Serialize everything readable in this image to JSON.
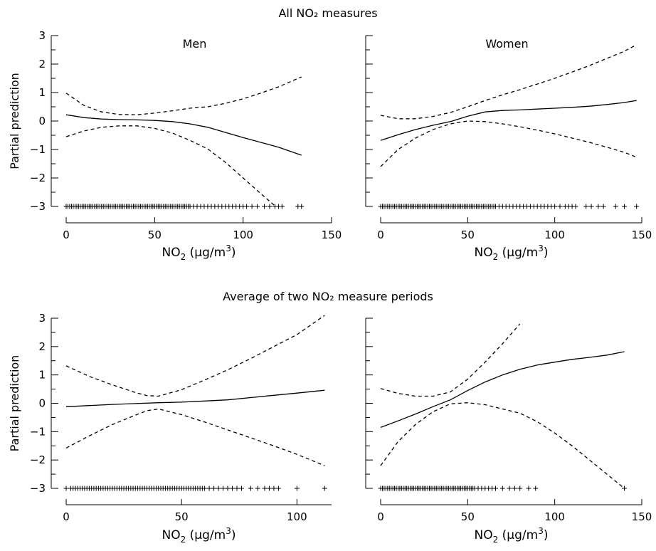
{
  "figure": {
    "title_top": "All NO₂ measures",
    "title_bottom": "Average of two NO₂ measure periods"
  },
  "labels": {
    "ylabel": "Partial prediction",
    "xlabel_main": "NO",
    "xlabel_sub": "2",
    "xlabel_units": " (µg/m",
    "xlabel_sup": "3",
    "xlabel_close": ")"
  },
  "colors": {
    "line": "#000000",
    "background": "#ffffff"
  },
  "chart_data": [
    {
      "type": "line",
      "panel": "All NO2 measures - Men",
      "title": "Men",
      "xlabel": "NO2 (µg/m3)",
      "ylabel": "Partial prediction",
      "xlim": [
        0,
        150
      ],
      "ylim": [
        -3,
        3
      ],
      "xticks": [
        0,
        50,
        100,
        150
      ],
      "yticks": [
        -3,
        -2,
        -1,
        0,
        1,
        2,
        3
      ],
      "show_ylabel": true,
      "series": [
        {
          "style": "solid",
          "x": [
            0,
            10,
            20,
            30,
            40,
            50,
            60,
            70,
            80,
            90,
            100,
            110,
            120,
            133
          ],
          "y": [
            0.22,
            0.12,
            0.07,
            0.05,
            0.04,
            0.02,
            -0.02,
            -0.1,
            -0.22,
            -0.4,
            -0.58,
            -0.75,
            -0.92,
            -1.2
          ]
        },
        {
          "style": "dashed",
          "x": [
            0,
            10,
            20,
            30,
            40,
            50,
            60,
            70,
            80,
            90,
            100,
            110,
            120,
            133
          ],
          "y": [
            0.98,
            0.55,
            0.32,
            0.23,
            0.22,
            0.28,
            0.36,
            0.45,
            0.5,
            0.62,
            0.78,
            0.98,
            1.2,
            1.55
          ]
        },
        {
          "style": "dashed",
          "x": [
            0,
            10,
            20,
            30,
            40,
            50,
            60,
            70,
            80,
            90,
            100,
            110,
            118
          ],
          "y": [
            -0.55,
            -0.35,
            -0.22,
            -0.17,
            -0.17,
            -0.26,
            -0.42,
            -0.68,
            -0.98,
            -1.45,
            -2.0,
            -2.55,
            -2.98
          ]
        }
      ],
      "rug": {
        "y": -3,
        "x": [
          0,
          1,
          2,
          3,
          4,
          5,
          6,
          7,
          8,
          9,
          10,
          11,
          12,
          13,
          14,
          15,
          16,
          17,
          18,
          19,
          20,
          21,
          22,
          23,
          24,
          25,
          26,
          27,
          28,
          29,
          30,
          31,
          32,
          33,
          34,
          35,
          36,
          37,
          38,
          39,
          40,
          41,
          42,
          43,
          44,
          45,
          46,
          47,
          48,
          49,
          50,
          51,
          52,
          53,
          54,
          55,
          56,
          57,
          58,
          59,
          60,
          61,
          62,
          63,
          64,
          65,
          66,
          67,
          68,
          69,
          70,
          72,
          74,
          76,
          78,
          80,
          82,
          84,
          86,
          88,
          90,
          92,
          94,
          96,
          98,
          100,
          102,
          105,
          108,
          112,
          115,
          118,
          120,
          122,
          131,
          133
        ]
      }
    },
    {
      "type": "line",
      "panel": "All NO2 measures - Women",
      "title": "Women",
      "xlabel": "NO2 (µg/m3)",
      "ylabel": "",
      "xlim": [
        0,
        150
      ],
      "ylim": [
        -3,
        3
      ],
      "xticks": [
        0,
        50,
        100,
        150
      ],
      "yticks": [
        -3,
        -2,
        -1,
        0,
        1,
        2,
        3
      ],
      "show_ylabel": false,
      "series": [
        {
          "style": "solid",
          "x": [
            0,
            10,
            20,
            30,
            40,
            50,
            60,
            70,
            80,
            90,
            100,
            110,
            120,
            130,
            140,
            147
          ],
          "y": [
            -0.68,
            -0.48,
            -0.3,
            -0.15,
            -0.02,
            0.17,
            0.32,
            0.37,
            0.39,
            0.42,
            0.45,
            0.48,
            0.52,
            0.58,
            0.65,
            0.72
          ]
        },
        {
          "style": "dashed",
          "x": [
            0,
            10,
            20,
            30,
            40,
            50,
            60,
            70,
            80,
            90,
            100,
            110,
            120,
            130,
            140,
            147
          ],
          "y": [
            0.2,
            0.08,
            0.08,
            0.16,
            0.3,
            0.5,
            0.72,
            0.92,
            1.1,
            1.3,
            1.5,
            1.72,
            1.95,
            2.2,
            2.45,
            2.68
          ]
        },
        {
          "style": "dashed",
          "x": [
            0,
            10,
            20,
            30,
            40,
            50,
            60,
            70,
            80,
            90,
            100,
            110,
            120,
            130,
            140,
            147
          ],
          "y": [
            -1.6,
            -1.0,
            -0.6,
            -0.3,
            -0.1,
            0.0,
            -0.02,
            -0.1,
            -0.2,
            -0.32,
            -0.45,
            -0.6,
            -0.75,
            -0.92,
            -1.1,
            -1.27
          ]
        }
      ],
      "rug": {
        "y": -3,
        "x": [
          0,
          1,
          2,
          3,
          4,
          5,
          6,
          7,
          8,
          9,
          10,
          11,
          12,
          13,
          14,
          15,
          16,
          17,
          18,
          19,
          20,
          21,
          22,
          23,
          24,
          25,
          26,
          27,
          28,
          29,
          30,
          31,
          32,
          33,
          34,
          35,
          36,
          37,
          38,
          39,
          40,
          41,
          42,
          43,
          44,
          45,
          46,
          47,
          48,
          49,
          50,
          51,
          52,
          53,
          54,
          55,
          56,
          57,
          58,
          59,
          60,
          61,
          62,
          63,
          64,
          65,
          66,
          68,
          70,
          72,
          74,
          76,
          78,
          80,
          82,
          84,
          86,
          88,
          90,
          92,
          94,
          96,
          98,
          100,
          103,
          106,
          108,
          110,
          112,
          118,
          121,
          125,
          128,
          135,
          140,
          147
        ]
      }
    },
    {
      "type": "line",
      "panel": "Average of two NO2 measure periods - Men",
      "title": "",
      "xlabel": "NO2 (µg/m3)",
      "ylabel": "Partial prediction",
      "xlim": [
        0,
        115
      ],
      "ylim": [
        -3,
        3
      ],
      "xticks": [
        0,
        50,
        100
      ],
      "yticks": [
        -3,
        -2,
        -1,
        0,
        1,
        2,
        3
      ],
      "show_ylabel": true,
      "series": [
        {
          "style": "solid",
          "x": [
            0,
            10,
            20,
            30,
            40,
            50,
            60,
            70,
            80,
            90,
            100,
            112
          ],
          "y": [
            -0.12,
            -0.08,
            -0.04,
            -0.01,
            0.02,
            0.04,
            0.08,
            0.12,
            0.2,
            0.28,
            0.36,
            0.46
          ]
        },
        {
          "style": "dashed",
          "x": [
            0,
            10,
            20,
            30,
            35,
            40,
            50,
            60,
            70,
            80,
            90,
            100,
            112
          ],
          "y": [
            1.32,
            0.95,
            0.65,
            0.38,
            0.27,
            0.25,
            0.48,
            0.82,
            1.18,
            1.58,
            2.0,
            2.42,
            3.1
          ]
        },
        {
          "style": "dashed",
          "x": [
            0,
            10,
            20,
            30,
            35,
            40,
            50,
            60,
            70,
            80,
            90,
            100,
            112
          ],
          "y": [
            -1.58,
            -1.15,
            -0.75,
            -0.42,
            -0.26,
            -0.2,
            -0.4,
            -0.66,
            -0.94,
            -1.22,
            -1.5,
            -1.8,
            -2.2
          ]
        }
      ],
      "rug": {
        "y": -3,
        "x": [
          0,
          2,
          3,
          4,
          5,
          6,
          7,
          8,
          9,
          10,
          11,
          12,
          13,
          14,
          15,
          16,
          17,
          18,
          19,
          20,
          21,
          22,
          23,
          24,
          25,
          26,
          27,
          28,
          29,
          30,
          31,
          32,
          33,
          34,
          35,
          36,
          37,
          38,
          39,
          40,
          41,
          42,
          43,
          44,
          45,
          46,
          47,
          48,
          49,
          50,
          51,
          52,
          53,
          54,
          55,
          56,
          57,
          58,
          59,
          60,
          62,
          64,
          66,
          68,
          70,
          72,
          74,
          76,
          80,
          83,
          86,
          88,
          90,
          92,
          100,
          112
        ]
      }
    },
    {
      "type": "line",
      "panel": "Average of two NO2 measure periods - Women",
      "title": "",
      "xlabel": "NO2 (µg/m3)",
      "ylabel": "",
      "xlim": [
        0,
        150
      ],
      "ylim": [
        -3,
        3
      ],
      "xticks": [
        0,
        50,
        100,
        150
      ],
      "yticks": [
        -3,
        -2,
        -1,
        0,
        1,
        2,
        3
      ],
      "show_ylabel": false,
      "series": [
        {
          "style": "solid",
          "x": [
            0,
            10,
            20,
            30,
            40,
            50,
            60,
            70,
            80,
            90,
            100,
            110,
            120,
            130,
            140
          ],
          "y": [
            -0.85,
            -0.62,
            -0.38,
            -0.12,
            0.12,
            0.45,
            0.75,
            1.0,
            1.2,
            1.35,
            1.45,
            1.55,
            1.62,
            1.7,
            1.82
          ]
        },
        {
          "style": "dashed",
          "x": [
            0,
            10,
            20,
            30,
            40,
            50,
            60,
            70,
            80
          ],
          "y": [
            0.52,
            0.35,
            0.25,
            0.25,
            0.4,
            0.85,
            1.45,
            2.1,
            2.8
          ]
        },
        {
          "style": "dashed",
          "x": [
            0,
            10,
            20,
            30,
            40,
            50,
            60,
            70,
            80,
            90,
            100,
            110,
            120,
            130,
            140
          ],
          "y": [
            -2.2,
            -1.35,
            -0.75,
            -0.3,
            -0.02,
            0.02,
            -0.05,
            -0.2,
            -0.35,
            -0.65,
            -1.05,
            -1.5,
            -2.0,
            -2.5,
            -3.0
          ]
        }
      ],
      "rug": {
        "y": -3,
        "x": [
          0,
          1,
          2,
          3,
          4,
          5,
          6,
          7,
          8,
          9,
          10,
          11,
          12,
          13,
          14,
          15,
          16,
          17,
          18,
          19,
          20,
          21,
          22,
          23,
          24,
          25,
          26,
          27,
          28,
          29,
          30,
          31,
          32,
          33,
          34,
          35,
          36,
          37,
          38,
          39,
          40,
          41,
          42,
          43,
          44,
          45,
          46,
          47,
          48,
          49,
          50,
          51,
          52,
          53,
          54,
          56,
          58,
          60,
          62,
          64,
          66,
          70,
          74,
          77,
          80,
          85,
          89,
          140
        ]
      }
    }
  ]
}
